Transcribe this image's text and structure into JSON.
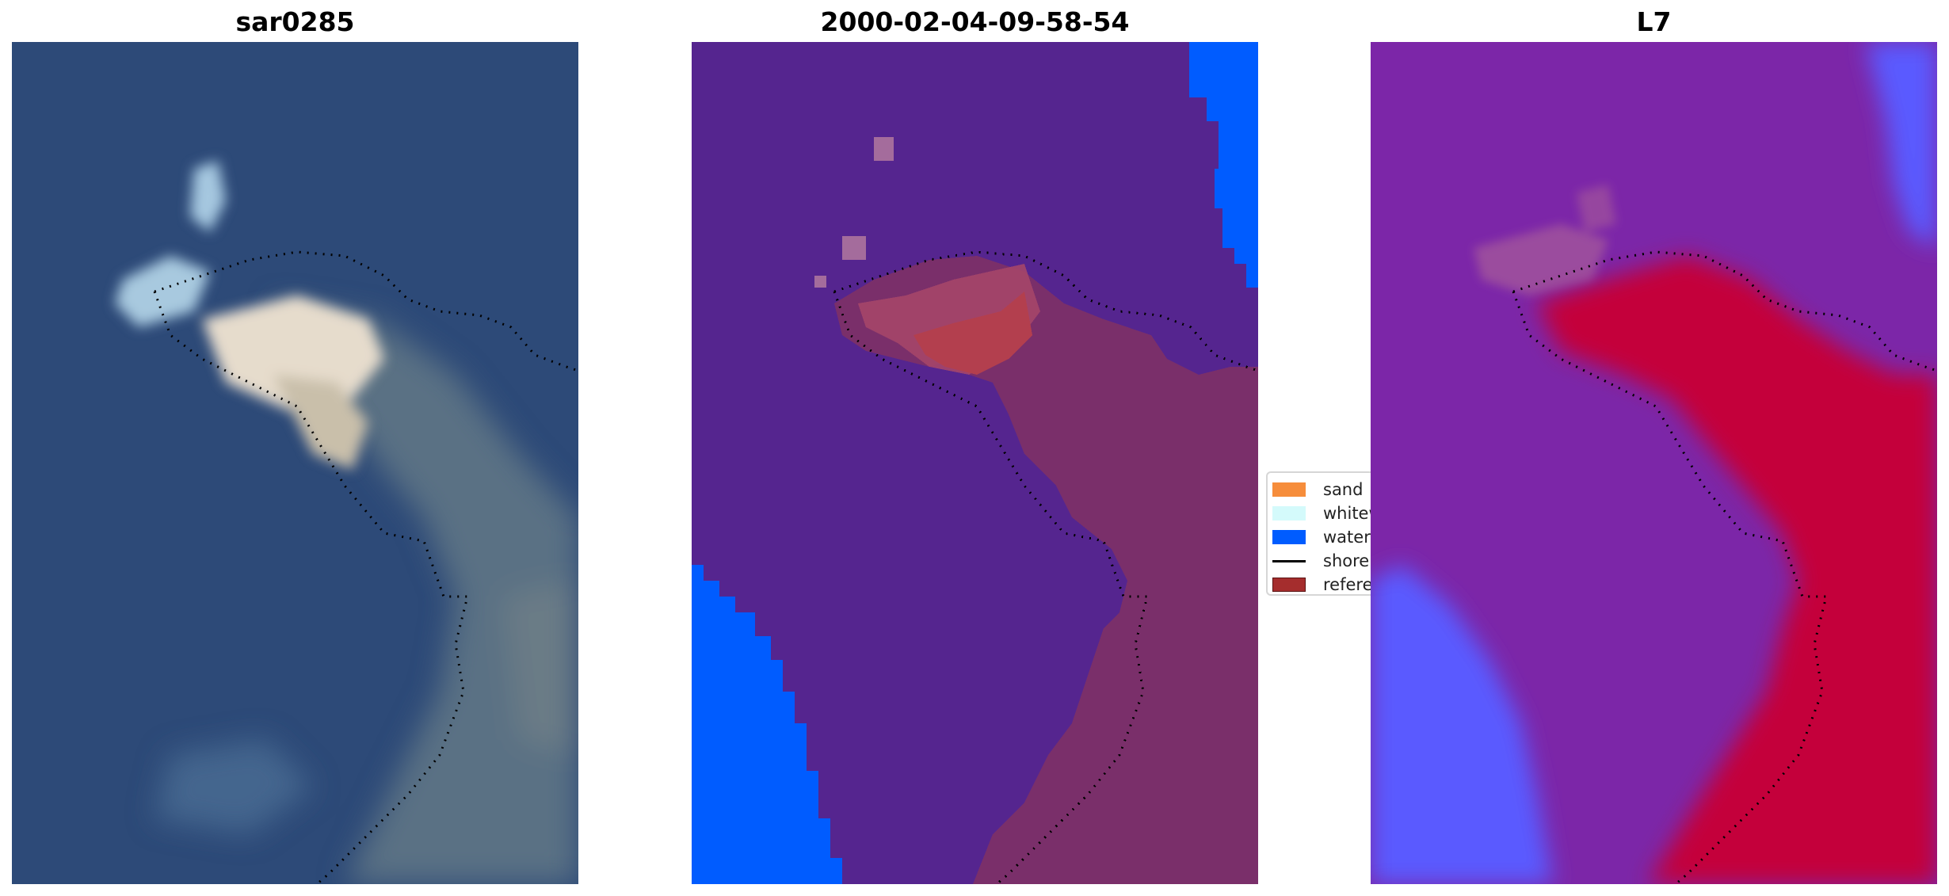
{
  "panels": [
    {
      "title": "sar0285"
    },
    {
      "title": "2000-02-04-09-58-54"
    },
    {
      "title": "L7"
    }
  ],
  "legend": {
    "items": [
      {
        "label": "sand",
        "color": "#f68d3b",
        "kind": "patch"
      },
      {
        "label": "whitew",
        "color": "#d4fafb",
        "kind": "patch"
      },
      {
        "label": "water",
        "color": "#005cff",
        "kind": "patch"
      },
      {
        "label": "shorel",
        "color": "#000000",
        "kind": "line"
      },
      {
        "label": "referer",
        "color": "#a52d2d",
        "kind": "patch"
      }
    ]
  },
  "colors": {
    "rgb_water": "#2c4a78",
    "rgb_shallow": "#4a6a86",
    "rgb_bright": "#f3e6d6",
    "class_background": "#55258f",
    "class_water": "#005cff",
    "class_reference": "#7a2f6a",
    "class_sand": "#b33f4e",
    "index_low": "#7c26a8",
    "index_high": "#c4063a",
    "index_water": "#5a5aff",
    "shoreline": "#000000"
  }
}
